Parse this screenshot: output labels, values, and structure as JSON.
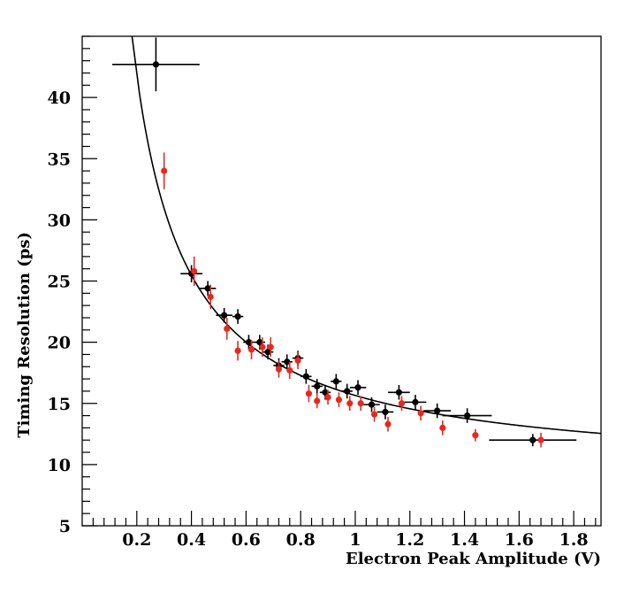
{
  "chart_data": {
    "type": "scatter",
    "title": "",
    "xlabel": "Electron Peak Amplitude (V)",
    "ylabel": "Timing Resolution (ps)",
    "xlim": [
      0.0,
      1.9
    ],
    "ylim": [
      5,
      45
    ],
    "x_ticks": [
      0.2,
      0.4,
      0.6,
      0.8,
      1.0,
      1.2,
      1.4,
      1.6,
      1.8
    ],
    "x_tick_labels": [
      "0.2",
      "0.4",
      "0.6",
      "0.8",
      "1",
      "1.2",
      "1.4",
      "1.6",
      "1.8"
    ],
    "y_ticks": [
      5,
      10,
      15,
      20,
      25,
      30,
      35,
      40
    ],
    "y_tick_labels": [
      "5",
      "10",
      "15",
      "20",
      "25",
      "30",
      "35",
      "40"
    ],
    "grid": false,
    "legend": "none",
    "series": [
      {
        "color": "#000000",
        "points": [
          {
            "x": 0.27,
            "y": 42.7,
            "xerr": 0.16,
            "yerr": 2.2
          },
          {
            "x": 0.4,
            "y": 25.6,
            "xerr": 0.04,
            "yerr": 0.7
          },
          {
            "x": 0.46,
            "y": 24.4,
            "xerr": 0.03,
            "yerr": 0.6
          },
          {
            "x": 0.52,
            "y": 22.2,
            "xerr": 0.03,
            "yerr": 0.6
          },
          {
            "x": 0.57,
            "y": 22.1,
            "xerr": 0.02,
            "yerr": 0.6
          },
          {
            "x": 0.61,
            "y": 20.0,
            "xerr": 0.02,
            "yerr": 0.6
          },
          {
            "x": 0.65,
            "y": 20.0,
            "xerr": 0.02,
            "yerr": 0.6
          },
          {
            "x": 0.68,
            "y": 19.2,
            "xerr": 0.02,
            "yerr": 0.6
          },
          {
            "x": 0.72,
            "y": 18.1,
            "xerr": 0.02,
            "yerr": 0.6
          },
          {
            "x": 0.75,
            "y": 18.4,
            "xerr": 0.02,
            "yerr": 0.6
          },
          {
            "x": 0.79,
            "y": 18.7,
            "xerr": 0.02,
            "yerr": 0.6
          },
          {
            "x": 0.82,
            "y": 17.2,
            "xerr": 0.02,
            "yerr": 0.6
          },
          {
            "x": 0.86,
            "y": 16.4,
            "xerr": 0.02,
            "yerr": 0.6
          },
          {
            "x": 0.89,
            "y": 15.9,
            "xerr": 0.02,
            "yerr": 0.6
          },
          {
            "x": 0.93,
            "y": 16.8,
            "xerr": 0.02,
            "yerr": 0.6
          },
          {
            "x": 0.97,
            "y": 16.0,
            "xerr": 0.02,
            "yerr": 0.6
          },
          {
            "x": 1.01,
            "y": 16.3,
            "xerr": 0.03,
            "yerr": 0.6
          },
          {
            "x": 1.06,
            "y": 14.9,
            "xerr": 0.03,
            "yerr": 0.6
          },
          {
            "x": 1.11,
            "y": 14.3,
            "xerr": 0.03,
            "yerr": 0.6
          },
          {
            "x": 1.16,
            "y": 15.9,
            "xerr": 0.04,
            "yerr": 0.6
          },
          {
            "x": 1.22,
            "y": 15.1,
            "xerr": 0.04,
            "yerr": 0.6
          },
          {
            "x": 1.3,
            "y": 14.4,
            "xerr": 0.05,
            "yerr": 0.6
          },
          {
            "x": 1.41,
            "y": 14.0,
            "xerr": 0.09,
            "yerr": 0.6
          },
          {
            "x": 1.65,
            "y": 12.0,
            "xerr": 0.16,
            "yerr": 0.5
          }
        ]
      },
      {
        "color": "#e8281f",
        "points": [
          {
            "x": 0.3,
            "y": 34.0,
            "yerr": 1.5
          },
          {
            "x": 0.41,
            "y": 25.8,
            "yerr": 1.2
          },
          {
            "x": 0.47,
            "y": 23.7,
            "yerr": 1.0
          },
          {
            "x": 0.53,
            "y": 21.1,
            "yerr": 0.9
          },
          {
            "x": 0.57,
            "y": 19.3,
            "yerr": 0.8
          },
          {
            "x": 0.62,
            "y": 19.4,
            "yerr": 0.8
          },
          {
            "x": 0.66,
            "y": 19.6,
            "yerr": 0.8
          },
          {
            "x": 0.69,
            "y": 19.6,
            "yerr": 0.8
          },
          {
            "x": 0.72,
            "y": 17.8,
            "yerr": 0.7
          },
          {
            "x": 0.76,
            "y": 17.7,
            "yerr": 0.7
          },
          {
            "x": 0.79,
            "y": 18.5,
            "yerr": 0.7
          },
          {
            "x": 0.83,
            "y": 15.8,
            "yerr": 0.7
          },
          {
            "x": 0.86,
            "y": 15.2,
            "yerr": 0.6
          },
          {
            "x": 0.9,
            "y": 15.5,
            "yerr": 0.6
          },
          {
            "x": 0.94,
            "y": 15.3,
            "yerr": 0.6
          },
          {
            "x": 0.98,
            "y": 15.0,
            "yerr": 0.6
          },
          {
            "x": 1.02,
            "y": 15.0,
            "yerr": 0.6
          },
          {
            "x": 1.07,
            "y": 14.1,
            "yerr": 0.6
          },
          {
            "x": 1.12,
            "y": 13.3,
            "yerr": 0.6
          },
          {
            "x": 1.17,
            "y": 15.0,
            "yerr": 0.6
          },
          {
            "x": 1.24,
            "y": 14.2,
            "yerr": 0.6
          },
          {
            "x": 1.32,
            "y": 13.0,
            "yerr": 0.6
          },
          {
            "x": 1.44,
            "y": 12.4,
            "yerr": 0.5
          },
          {
            "x": 1.68,
            "y": 12.0,
            "yerr": 0.6
          }
        ]
      }
    ],
    "fit": {
      "color": "#000000",
      "model": "y = a / x + b",
      "a": 6.55,
      "b": 9.1,
      "x_range": [
        0.21,
        1.9
      ]
    }
  }
}
